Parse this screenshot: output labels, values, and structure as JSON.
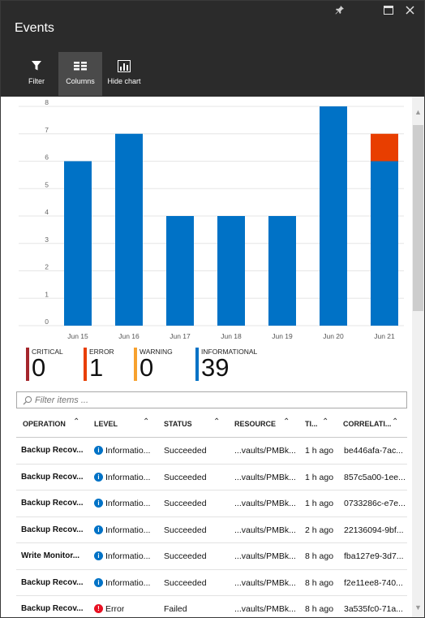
{
  "window": {
    "title": "Events",
    "pin_icon": "pin-icon",
    "maximize_icon": "maximize-icon",
    "close_icon": "close-icon"
  },
  "toolbar": {
    "filter_label": "Filter",
    "columns_label": "Columns",
    "hide_chart_label": "Hide chart"
  },
  "chart_data": {
    "type": "bar",
    "stacked": true,
    "categories": [
      "Jun 15",
      "Jun 16",
      "Jun 17",
      "Jun 18",
      "Jun 19",
      "Jun 20",
      "Jun 21"
    ],
    "series": [
      {
        "name": "INFORMATIONAL",
        "color": "#0072c6",
        "values": [
          6,
          7,
          4,
          4,
          4,
          8,
          6
        ]
      },
      {
        "name": "ERROR",
        "color": "#e83e00",
        "values": [
          0,
          0,
          0,
          0,
          0,
          0,
          1
        ]
      }
    ],
    "yticks": [
      "0",
      "1",
      "2",
      "3",
      "4",
      "5",
      "6",
      "7",
      "8"
    ],
    "ylim": [
      0,
      8
    ],
    "grid": true
  },
  "summary": [
    {
      "label": "CRITICAL",
      "count": "0",
      "color": "#a4262c"
    },
    {
      "label": "ERROR",
      "count": "1",
      "color": "#e83e00"
    },
    {
      "label": "WARNING",
      "count": "0",
      "color": "#f7a12e"
    },
    {
      "label": "INFORMATIONAL",
      "count": "39",
      "color": "#0072c6"
    }
  ],
  "filter": {
    "placeholder": "Filter items ..."
  },
  "table": {
    "headers": [
      "OPERATION",
      "LEVEL",
      "STATUS",
      "RESOURCE",
      "TI...",
      "CORRELATI..."
    ],
    "rows": [
      [
        "Backup Recov...",
        "Informatio...",
        "Succeeded",
        "...vaults/PMBk...",
        "1 h ago",
        "be446afa-7ac..."
      ],
      [
        "Backup Recov...",
        "Informatio...",
        "Succeeded",
        "...vaults/PMBk...",
        "1 h ago",
        "857c5a00-1ee..."
      ],
      [
        "Backup Recov...",
        "Informatio...",
        "Succeeded",
        "...vaults/PMBk...",
        "1 h ago",
        "0733286c-e7e..."
      ],
      [
        "Backup Recov...",
        "Informatio...",
        "Succeeded",
        "...vaults/PMBk...",
        "2 h ago",
        "22136094-9bf..."
      ],
      [
        "Write Monitor...",
        "Informatio...",
        "Succeeded",
        "...vaults/PMBk...",
        "8 h ago",
        "fba127e9-3d7..."
      ],
      [
        "Backup Recov...",
        "Informatio...",
        "Succeeded",
        "...vaults/PMBk...",
        "8 h ago",
        "f2e11ee8-740..."
      ],
      [
        "Backup Recov...",
        "Error",
        "Failed",
        "...vaults/PMBk...",
        "8 h ago",
        "3a535fc0-71a..."
      ]
    ],
    "row_levels": [
      "info",
      "info",
      "info",
      "info",
      "info",
      "info",
      "error"
    ]
  }
}
